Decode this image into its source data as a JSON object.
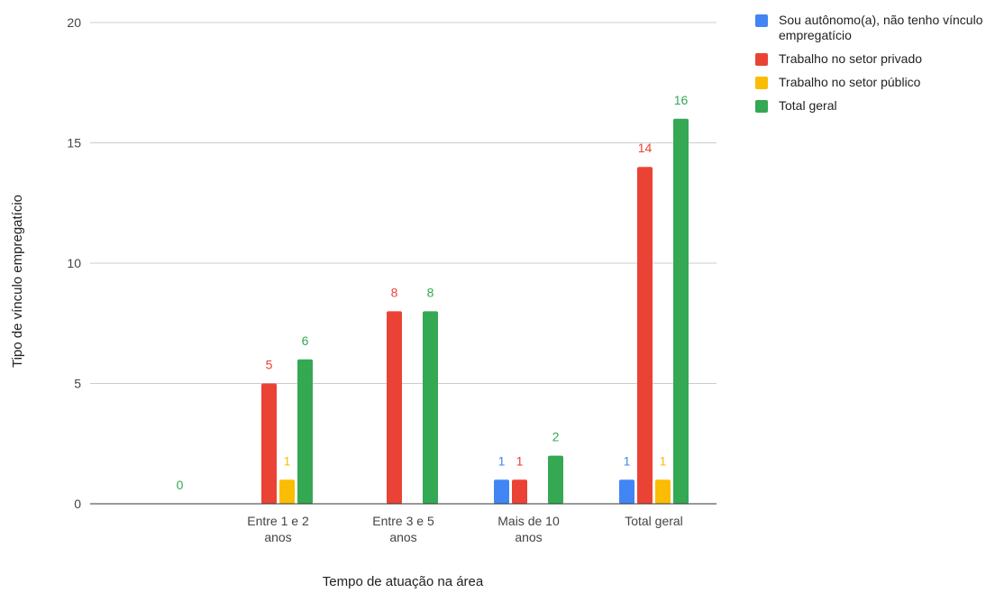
{
  "chart_data": {
    "type": "bar",
    "title": "",
    "xlabel": "Tempo de atuação na área",
    "ylabel": "Tipo de vínculo empregatício",
    "ylim": [
      0,
      20
    ],
    "yticks": [
      0,
      5,
      10,
      15,
      20
    ],
    "grid": true,
    "legend_position": "top-right",
    "categories": [
      "",
      "Entre 1 e 2\nanos",
      "Entre 3 e 5\nanos",
      "Mais de 10\nanos",
      "Total geral"
    ],
    "series": [
      {
        "name": "Sou autônomo(a), não tenho vínculo empregatício",
        "color": "#4285F4",
        "values": [
          null,
          null,
          null,
          1,
          1
        ]
      },
      {
        "name": "Trabalho no setor privado",
        "color": "#EA4335",
        "values": [
          null,
          5,
          8,
          1,
          14
        ]
      },
      {
        "name": "Trabalho no setor público",
        "color": "#FBBC04",
        "values": [
          null,
          1,
          null,
          null,
          1
        ]
      },
      {
        "name": "Total geral",
        "color": "#34A853",
        "values": [
          0,
          6,
          8,
          2,
          16
        ]
      }
    ]
  }
}
